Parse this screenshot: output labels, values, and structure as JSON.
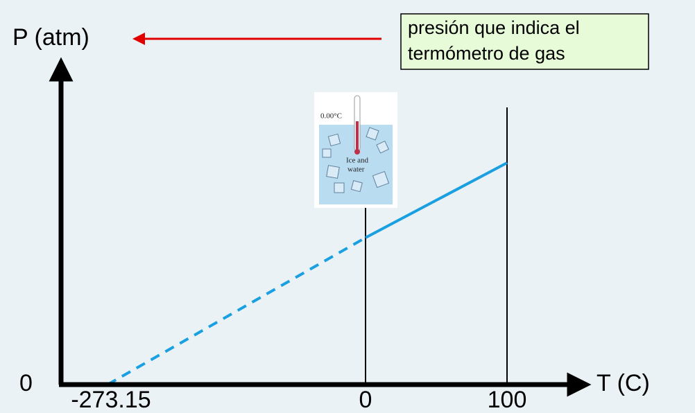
{
  "y_axis_label": "P (atm)",
  "note": {
    "lines": [
      "presión que indica el",
      "termómetro de gas"
    ]
  },
  "origin_label": "0",
  "x_axis_label": "T (C)",
  "x_labels": [
    "-273.15",
    "0",
    "100"
  ],
  "picture": {
    "reading": "0.00°C",
    "caption": [
      "Ice and",
      "water"
    ]
  }
}
